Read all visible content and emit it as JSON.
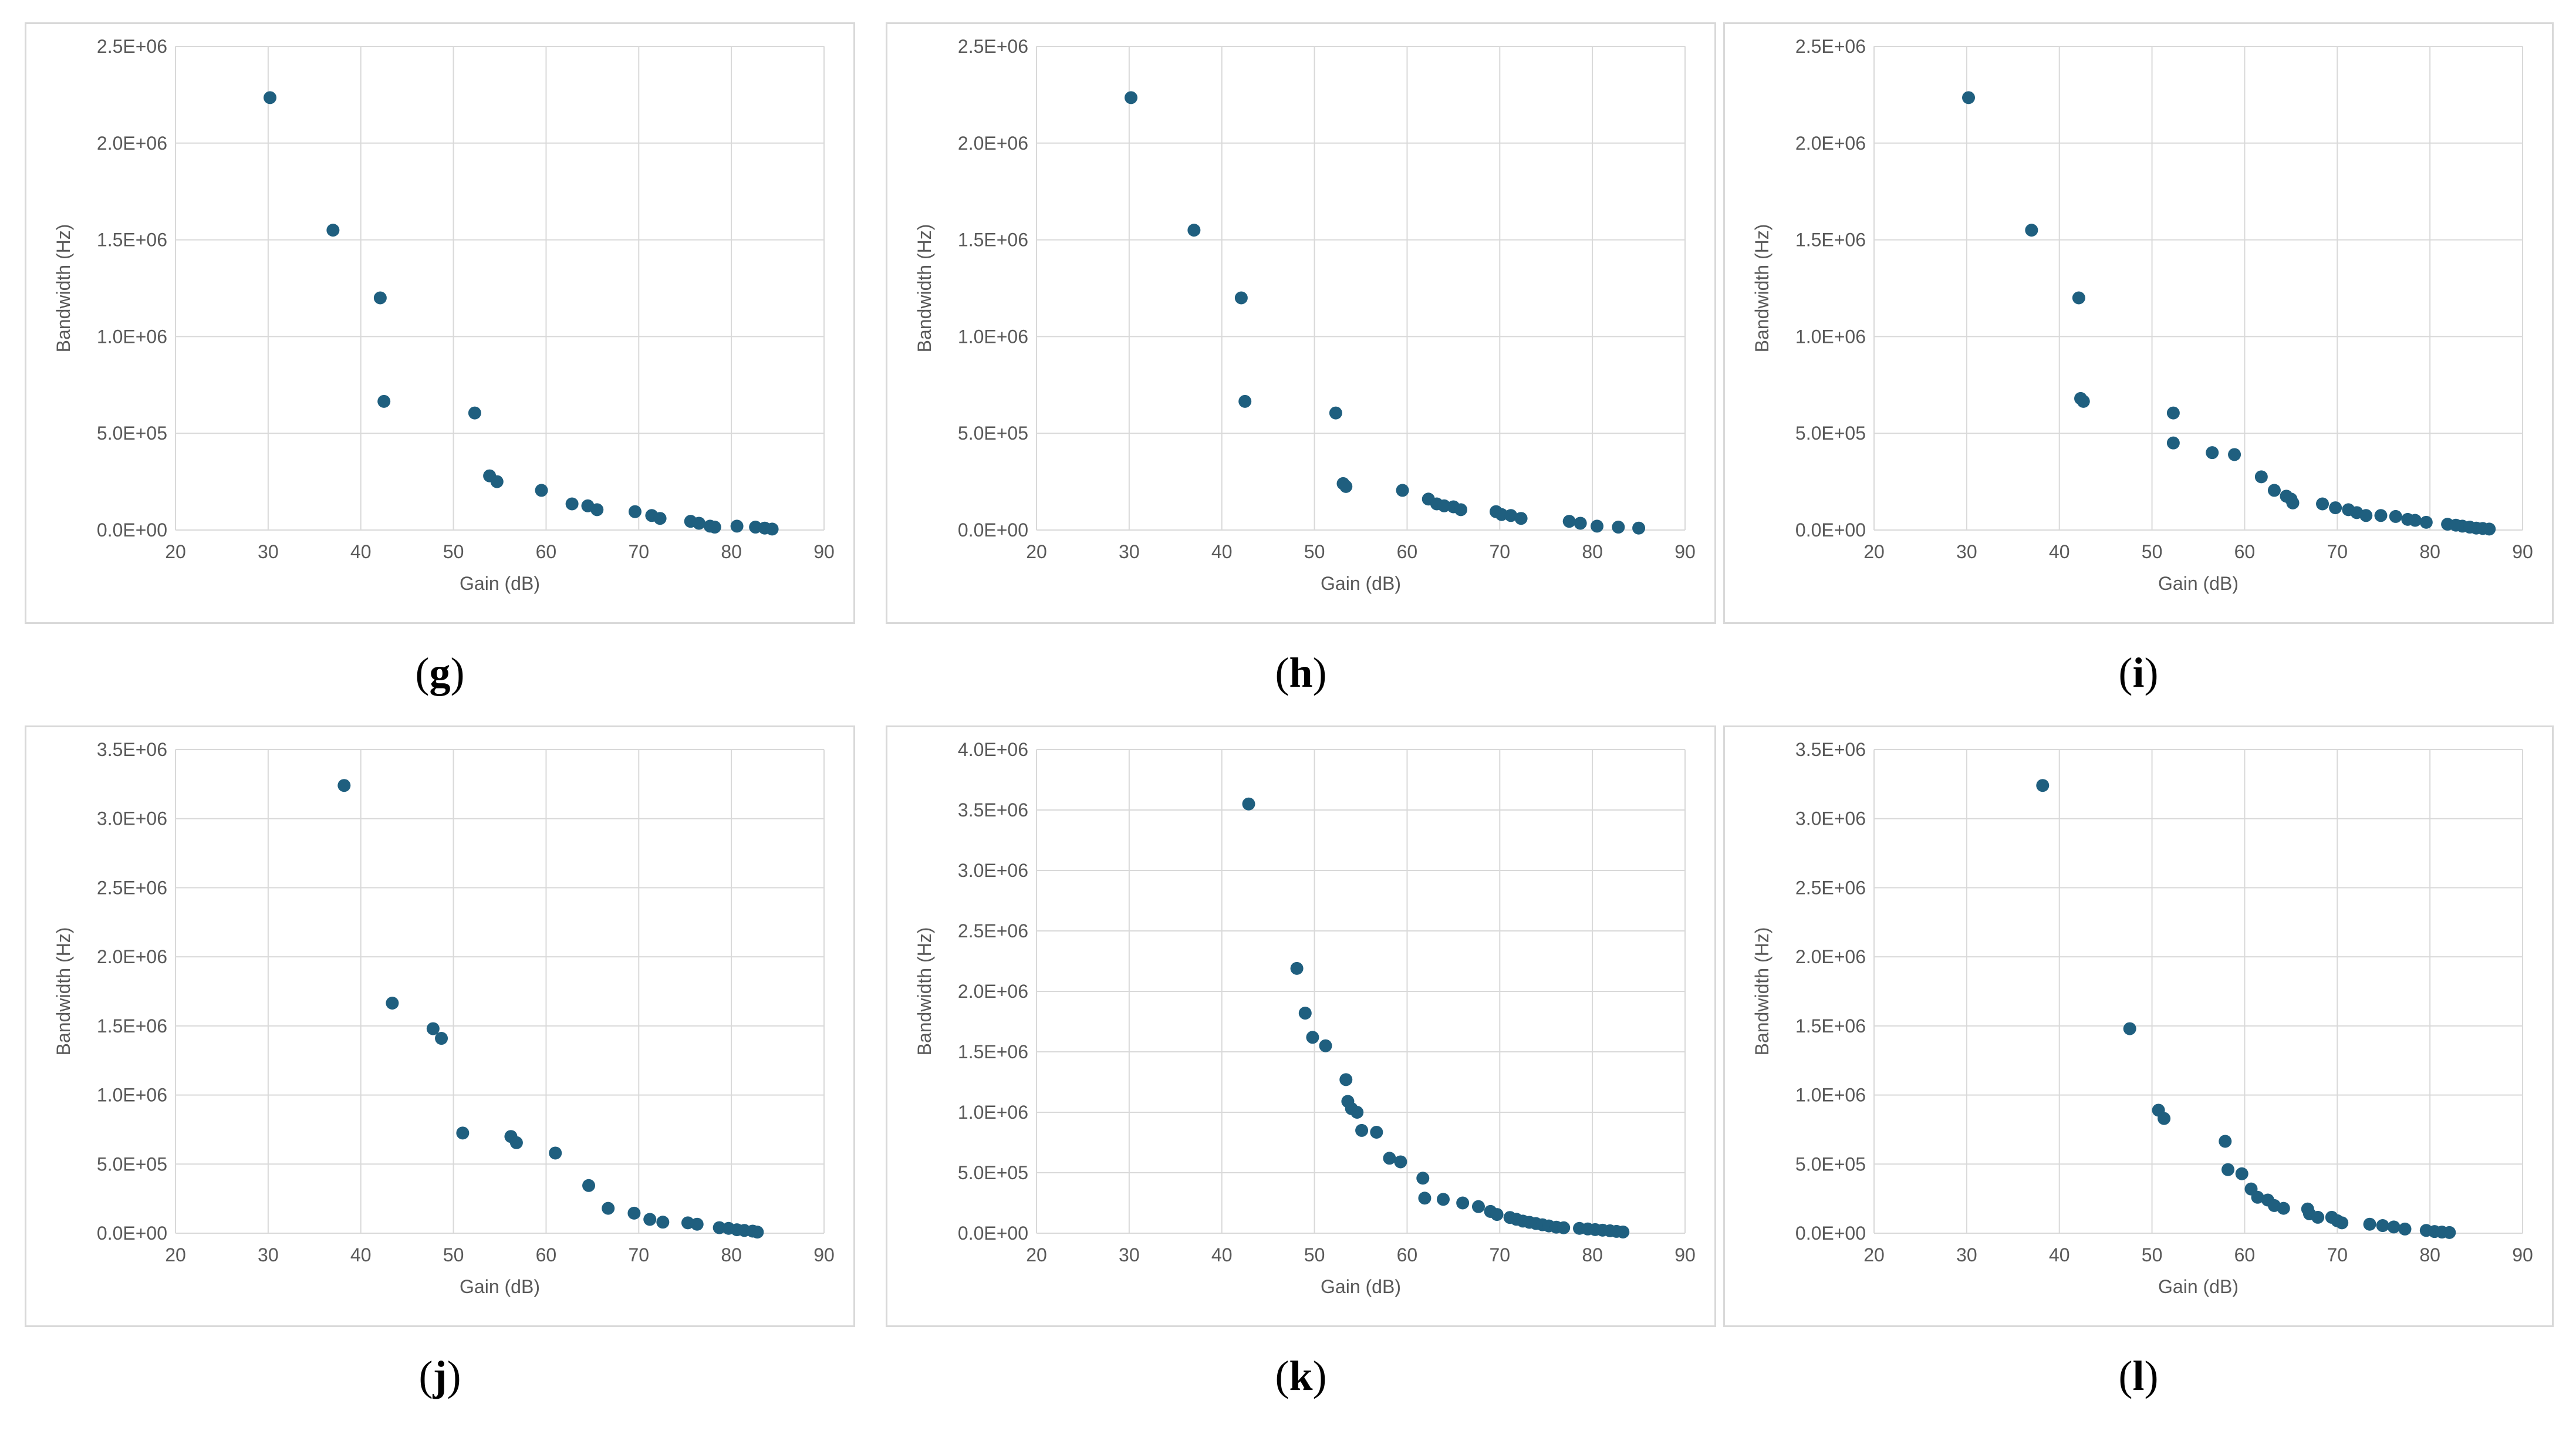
{
  "colors": {
    "marker": "#1f5f7f",
    "grid": "#d9d9d9",
    "axis_text": "#595959",
    "border": "#d9d9d9"
  },
  "chart_data": [
    {
      "id": "g",
      "caption": "g",
      "type": "scatter",
      "xlabel": "Gain (dB)",
      "ylabel": "Bandwidth (Hz)",
      "xlim": [
        20,
        90
      ],
      "ylim": [
        0,
        2500000
      ],
      "xticks": [
        "20",
        "30",
        "40",
        "50",
        "60",
        "70",
        "80",
        "90"
      ],
      "yticks": [
        "0.0E+00",
        "5.0E+05",
        "1.0E+06",
        "1.5E+06",
        "2.0E+06",
        "2.5E+06"
      ],
      "points": [
        [
          30.2,
          2235000
        ],
        [
          37,
          1550000
        ],
        [
          42.1,
          1200000
        ],
        [
          42.5,
          665000
        ],
        [
          52.3,
          605000
        ],
        [
          53.9,
          280000
        ],
        [
          54.7,
          250000
        ],
        [
          59.5,
          205000
        ],
        [
          62.8,
          135000
        ],
        [
          64.5,
          125000
        ],
        [
          65.5,
          105000
        ],
        [
          69.6,
          95000
        ],
        [
          71.4,
          75000
        ],
        [
          72.3,
          60000
        ],
        [
          75.6,
          45000
        ],
        [
          76.5,
          35000
        ],
        [
          77.7,
          20000
        ],
        [
          78.2,
          15000
        ],
        [
          80.6,
          20000
        ],
        [
          82.6,
          15000
        ],
        [
          83.6,
          10000
        ],
        [
          84.4,
          5000
        ]
      ]
    },
    {
      "id": "h",
      "caption": "h",
      "type": "scatter",
      "xlabel": "Gain (dB)",
      "ylabel": "Bandwidth (Hz)",
      "xlim": [
        20,
        90
      ],
      "ylim": [
        0,
        2500000
      ],
      "xticks": [
        "20",
        "30",
        "40",
        "50",
        "60",
        "70",
        "80",
        "90"
      ],
      "yticks": [
        "0.0E+00",
        "5.0E+05",
        "1.0E+06",
        "1.5E+06",
        "2.0E+06",
        "2.5E+06"
      ],
      "points": [
        [
          30.2,
          2235000
        ],
        [
          37,
          1550000
        ],
        [
          42.1,
          1200000
        ],
        [
          42.5,
          665000
        ],
        [
          52.3,
          605000
        ],
        [
          53.1,
          240000
        ],
        [
          53.4,
          225000
        ],
        [
          59.5,
          205000
        ],
        [
          62.3,
          160000
        ],
        [
          63.2,
          135000
        ],
        [
          64,
          125000
        ],
        [
          65,
          120000
        ],
        [
          65.8,
          105000
        ],
        [
          69.6,
          95000
        ],
        [
          70.2,
          80000
        ],
        [
          71.2,
          75000
        ],
        [
          72.3,
          60000
        ],
        [
          77.5,
          45000
        ],
        [
          78.7,
          35000
        ],
        [
          80.5,
          20000
        ],
        [
          82.8,
          15000
        ],
        [
          85,
          10000
        ]
      ]
    },
    {
      "id": "i",
      "caption": "i",
      "type": "scatter",
      "xlabel": "Gain (dB)",
      "ylabel": "Bandwidth (Hz)",
      "xlim": [
        20,
        90
      ],
      "ylim": [
        0,
        2500000
      ],
      "xticks": [
        "20",
        "30",
        "40",
        "50",
        "60",
        "70",
        "80",
        "90"
      ],
      "yticks": [
        "0.0E+00",
        "5.0E+05",
        "1.0E+06",
        "1.5E+06",
        "2.0E+06",
        "2.5E+06"
      ],
      "points": [
        [
          30.2,
          2235000
        ],
        [
          37,
          1550000
        ],
        [
          42.1,
          1200000
        ],
        [
          42.3,
          680000
        ],
        [
          42.6,
          665000
        ],
        [
          52.3,
          605000
        ],
        [
          52.3,
          450000
        ],
        [
          56.5,
          400000
        ],
        [
          58.9,
          390000
        ],
        [
          61.8,
          275000
        ],
        [
          63.2,
          205000
        ],
        [
          64.5,
          175000
        ],
        [
          65,
          160000
        ],
        [
          65.2,
          140000
        ],
        [
          68.4,
          135000
        ],
        [
          69.8,
          115000
        ],
        [
          71.2,
          105000
        ],
        [
          72.1,
          90000
        ],
        [
          73.1,
          75000
        ],
        [
          74.7,
          75000
        ],
        [
          76.3,
          70000
        ],
        [
          77.6,
          55000
        ],
        [
          78.4,
          50000
        ],
        [
          79.6,
          40000
        ],
        [
          81.9,
          30000
        ],
        [
          82.8,
          25000
        ],
        [
          83.5,
          20000
        ],
        [
          84.3,
          15000
        ],
        [
          85,
          10000
        ],
        [
          85.7,
          8000
        ],
        [
          86.4,
          5000
        ]
      ]
    },
    {
      "id": "j",
      "caption": "j",
      "type": "scatter",
      "xlabel": "Gain (dB)",
      "ylabel": "Bandwidth (Hz)",
      "xlim": [
        20,
        90
      ],
      "ylim": [
        0,
        3500000
      ],
      "xticks": [
        "20",
        "30",
        "40",
        "50",
        "60",
        "70",
        "80",
        "90"
      ],
      "yticks": [
        "0.0E+00",
        "5.0E+05",
        "1.0E+06",
        "1.5E+06",
        "2.0E+06",
        "2.5E+06",
        "3.0E+06",
        "3.5E+06"
      ],
      "points": [
        [
          38.2,
          3240000
        ],
        [
          43.4,
          1665000
        ],
        [
          47.8,
          1480000
        ],
        [
          48.7,
          1410000
        ],
        [
          51,
          725000
        ],
        [
          56.2,
          700000
        ],
        [
          56.8,
          655000
        ],
        [
          61,
          580000
        ],
        [
          64.6,
          345000
        ],
        [
          66.7,
          180000
        ],
        [
          69.5,
          145000
        ],
        [
          71.2,
          100000
        ],
        [
          72.6,
          80000
        ],
        [
          75.3,
          75000
        ],
        [
          76.3,
          65000
        ],
        [
          78.7,
          40000
        ],
        [
          79.7,
          35000
        ],
        [
          80.6,
          25000
        ],
        [
          81.4,
          20000
        ],
        [
          82.3,
          15000
        ],
        [
          82.8,
          8000
        ]
      ]
    },
    {
      "id": "k",
      "caption": "k",
      "type": "scatter",
      "xlabel": "Gain (dB)",
      "ylabel": "Bandwidth (Hz)",
      "xlim": [
        20,
        90
      ],
      "ylim": [
        0,
        4000000
      ],
      "xticks": [
        "20",
        "30",
        "40",
        "50",
        "60",
        "70",
        "80",
        "90"
      ],
      "yticks": [
        "0.0E+00",
        "5.0E+05",
        "1.0E+06",
        "1.5E+06",
        "2.0E+06",
        "2.5E+06",
        "3.0E+06",
        "3.5E+06",
        "4.0E+06"
      ],
      "points": [
        [
          42.9,
          3550000
        ],
        [
          48.1,
          2190000
        ],
        [
          49,
          1820000
        ],
        [
          49.8,
          1620000
        ],
        [
          51.2,
          1550000
        ],
        [
          53.4,
          1270000
        ],
        [
          53.6,
          1090000
        ],
        [
          54,
          1030000
        ],
        [
          54.6,
          1000000
        ],
        [
          55.1,
          850000
        ],
        [
          56.7,
          835000
        ],
        [
          58.1,
          620000
        ],
        [
          59.3,
          590000
        ],
        [
          61.7,
          455000
        ],
        [
          61.9,
          290000
        ],
        [
          63.9,
          280000
        ],
        [
          66,
          250000
        ],
        [
          67.7,
          220000
        ],
        [
          69,
          180000
        ],
        [
          69.7,
          155000
        ],
        [
          71.1,
          130000
        ],
        [
          71.8,
          115000
        ],
        [
          72.5,
          100000
        ],
        [
          73.2,
          90000
        ],
        [
          73.9,
          80000
        ],
        [
          74.6,
          70000
        ],
        [
          75.3,
          60000
        ],
        [
          76.1,
          50000
        ],
        [
          76.9,
          45000
        ],
        [
          78.6,
          40000
        ],
        [
          79.5,
          35000
        ],
        [
          80.3,
          30000
        ],
        [
          81.1,
          25000
        ],
        [
          81.9,
          20000
        ],
        [
          82.6,
          15000
        ],
        [
          83.3,
          10000
        ]
      ]
    },
    {
      "id": "l",
      "caption": "l",
      "type": "scatter",
      "xlabel": "Gain (dB)",
      "ylabel": "Bandwidth (Hz)",
      "xlim": [
        20,
        90
      ],
      "ylim": [
        0,
        3500000
      ],
      "xticks": [
        "20",
        "30",
        "40",
        "50",
        "60",
        "70",
        "80",
        "90"
      ],
      "yticks": [
        "0.0E+00",
        "5.0E+05",
        "1.0E+06",
        "1.5E+06",
        "2.0E+06",
        "2.5E+06",
        "3.0E+06",
        "3.5E+06"
      ],
      "points": [
        [
          38.2,
          3240000
        ],
        [
          47.6,
          1480000
        ],
        [
          50.7,
          890000
        ],
        [
          51.3,
          830000
        ],
        [
          57.9,
          665000
        ],
        [
          58.2,
          460000
        ],
        [
          59.7,
          430000
        ],
        [
          60.7,
          320000
        ],
        [
          61.4,
          260000
        ],
        [
          62.5,
          240000
        ],
        [
          63.2,
          200000
        ],
        [
          64.2,
          180000
        ],
        [
          66.8,
          175000
        ],
        [
          67,
          140000
        ],
        [
          67.9,
          115000
        ],
        [
          69.4,
          115000
        ],
        [
          70,
          90000
        ],
        [
          70.5,
          75000
        ],
        [
          73.5,
          65000
        ],
        [
          74.9,
          55000
        ],
        [
          76.1,
          45000
        ],
        [
          77.3,
          30000
        ],
        [
          79.6,
          20000
        ],
        [
          80.5,
          12000
        ],
        [
          81.3,
          8000
        ],
        [
          82.1,
          5000
        ]
      ]
    }
  ]
}
